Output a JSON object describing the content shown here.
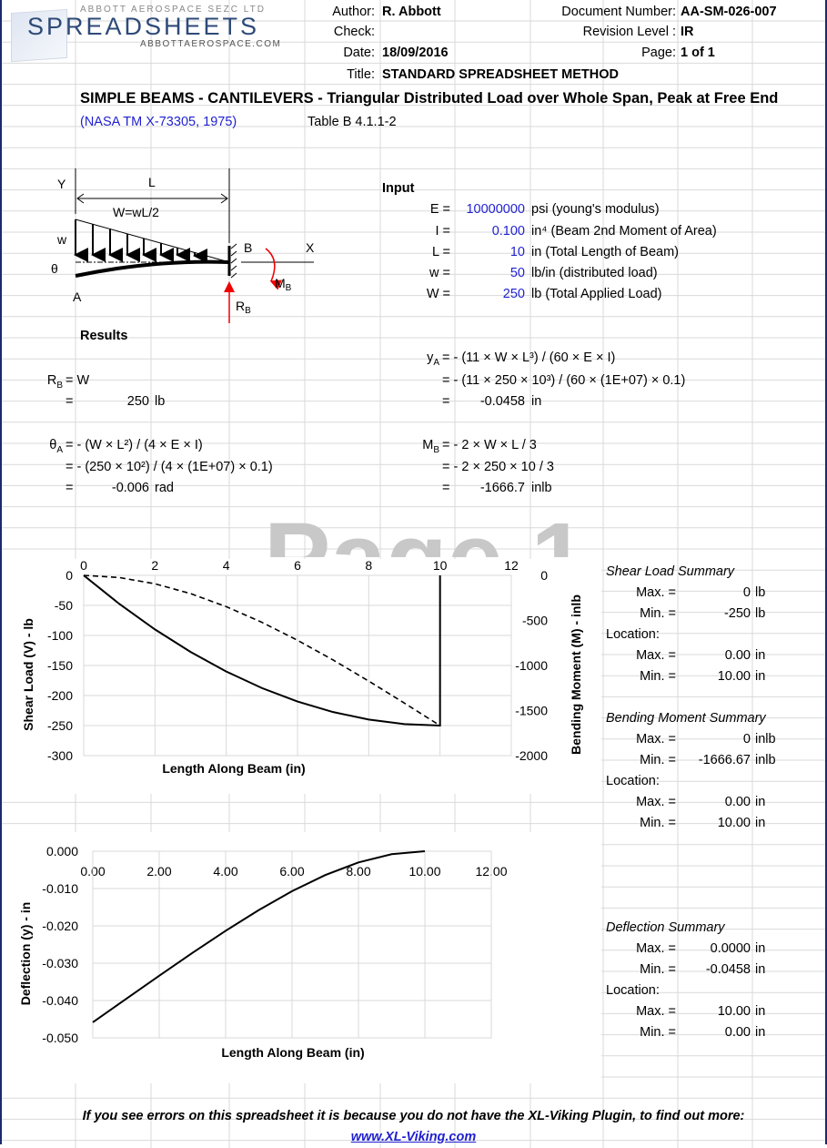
{
  "header": {
    "logo_top": "ABBOTT AEROSPACE SEZC LTD",
    "logo_main": "SPREADSHEETS",
    "logo_url": "ABBOTTAEROSPACE.COM",
    "author_label": "Author:",
    "author": "R. Abbott",
    "check_label": "Check:",
    "date_label": "Date:",
    "date": "18/09/2016",
    "title_label": "Title:",
    "title": "STANDARD SPREADSHEET METHOD",
    "docnum_label": "Document Number:",
    "docnum": "AA-SM-026-007",
    "rev_label": "Revision Level :",
    "rev": "IR",
    "page_label": "Page:",
    "page": "1 of 1"
  },
  "main_title": "SIMPLE BEAMS - CANTILEVERS - Triangular Distributed Load over Whole Span, Peak at Free End",
  "reference": "(NASA TM X-73305, 1975)",
  "table_ref": "Table B 4.1.1-2",
  "diagram": {
    "Y": "Y",
    "L": "L",
    "W": "W=wL/2",
    "w": "w",
    "theta": "θ",
    "A": "A",
    "B": "B",
    "X": "X",
    "MB": "M",
    "MB_sub": "B",
    "RB": "R",
    "RB_sub": "B"
  },
  "input": {
    "heading": "Input",
    "rows": [
      {
        "label": "E =",
        "value": "10000000",
        "unit": "psi (young's modulus)"
      },
      {
        "label": "I =",
        "value": "0.100",
        "unit": "in⁴ (Beam 2nd Moment of Area)"
      },
      {
        "label": "L =",
        "value": "10",
        "unit": "in (Total Length of Beam)"
      },
      {
        "label": "w =",
        "value": "50",
        "unit": "lb/in (distributed load)"
      },
      {
        "label": "W =",
        "value": "250",
        "unit": "lb (Total Applied Load)"
      }
    ]
  },
  "results": {
    "heading": "Results",
    "RB_label": "R",
    "RB_sub": "B",
    "RB_eq": "= W",
    "RB_eq2": "=",
    "RB_value": "250",
    "RB_unit": "lb",
    "thA_label": "θ",
    "thA_sub": "A",
    "thA_f1": "= - (W × L²) / (4 × E × I)",
    "thA_f2": "= - (250 × 10²) / (4 × (1E+07) × 0.1)",
    "thA_eq3": "=",
    "thA_value": "-0.006",
    "thA_unit": "rad",
    "yA_label": "y",
    "yA_sub": "A",
    "yA_f1": "= - (11 × W × L³) / (60 × E × I)",
    "yA_f2": "= - (11 × 250 × 10³) / (60 × (1E+07) × 0.1)",
    "yA_eq3": "=",
    "yA_value": "-0.0458",
    "yA_unit": "in",
    "MB_label": "M",
    "MB_sub": "B",
    "MB_f1": "= - 2 × W × L / 3",
    "MB_f2": "= - 2 × 250 × 10 / 3",
    "MB_eq3": "=",
    "MB_value": "-1666.7",
    "MB_unit": "inlb"
  },
  "watermark": "Page 1",
  "summaries": [
    {
      "title": "Shear Load Summary",
      "max_label": "Max. =",
      "max": "0",
      "max_unit": "lb",
      "min_label": "Min. =",
      "min": "-250",
      "min_unit": "lb",
      "loc_label": "Location:",
      "lmax_label": "Max. =",
      "lmax": "0.00",
      "lmax_unit": "in",
      "lmin_label": "Min. =",
      "lmin": "10.00",
      "lmin_unit": "in"
    },
    {
      "title": "Bending Moment Summary",
      "max_label": "Max. =",
      "max": "0",
      "max_unit": "inlb",
      "min_label": "Min. =",
      "min": "-1666.67",
      "min_unit": "inlb",
      "loc_label": "Location:",
      "lmax_label": "Max. =",
      "lmax": "0.00",
      "lmax_unit": "in",
      "lmin_label": "Min. =",
      "lmin": "10.00",
      "lmin_unit": "in"
    },
    {
      "title": "Deflection Summary",
      "max_label": "Max. =",
      "max": "0.0000",
      "max_unit": "in",
      "min_label": "Min. =",
      "min": "-0.0458",
      "min_unit": "in",
      "loc_label": "Location:",
      "lmax_label": "Max. =",
      "lmax": "10.00",
      "lmax_unit": "in",
      "lmin_label": "Min. =",
      "lmin": "0.00",
      "lmin_unit": "in"
    }
  ],
  "chart_data": [
    {
      "type": "line",
      "xlabel": "Length Along Beam (in)",
      "ylabel": "Shear Load (V) - lb",
      "y2label": "Bending Moment (M) - inlb",
      "xlim": [
        0,
        12
      ],
      "xticks": [
        "0",
        "2",
        "4",
        "6",
        "8",
        "10",
        "12"
      ],
      "ylim": [
        -300,
        0
      ],
      "yticks": [
        "0",
        "-50",
        "-100",
        "-150",
        "-200",
        "-250",
        "-300"
      ],
      "y2lim": [
        -2000,
        0
      ],
      "y2ticks": [
        "0",
        "-500",
        "-1000",
        "-1500",
        "-2000"
      ],
      "x": [
        0,
        1,
        2,
        3,
        4,
        5,
        6,
        7,
        8,
        9,
        10
      ],
      "series": [
        {
          "name": "Shear",
          "axis": "left",
          "style": "solid",
          "values": [
            0,
            -47.5,
            -90,
            -127.5,
            -160,
            -187.5,
            -210,
            -227.5,
            -240,
            -247.5,
            -250
          ],
          "end_to": 0
        },
        {
          "name": "Moment",
          "axis": "right",
          "style": "dashed",
          "values": [
            0,
            -24.17,
            -93.33,
            -202.5,
            -346.67,
            -520.83,
            -720,
            -939.17,
            -1173.33,
            -1417.5,
            -1666.67
          ]
        }
      ]
    },
    {
      "type": "line",
      "xlabel": "Length Along Beam (in)",
      "ylabel": "Deflection (y) - in",
      "xlim": [
        0,
        12
      ],
      "xticks": [
        "0.00",
        "2.00",
        "4.00",
        "6.00",
        "8.00",
        "10.00",
        "12.00"
      ],
      "ylim": [
        -0.05,
        0
      ],
      "yticks": [
        "0.000",
        "-0.010",
        "-0.020",
        "-0.030",
        "-0.040",
        "-0.050"
      ],
      "x": [
        0,
        1,
        2,
        3,
        4,
        5,
        6,
        7,
        8,
        9,
        10
      ],
      "series": [
        {
          "name": "Deflection",
          "values": [
            -0.04583,
            -0.03959,
            -0.03337,
            -0.02724,
            -0.02132,
            -0.01576,
            -0.01071,
            -0.00639,
            -0.003,
            -0.00079,
            0
          ]
        }
      ]
    }
  ],
  "footer": {
    "note": "If you see errors on this spreadsheet it is because you do not have the XL-Viking Plugin, to find out more:",
    "link": "www.XL-Viking.com"
  }
}
